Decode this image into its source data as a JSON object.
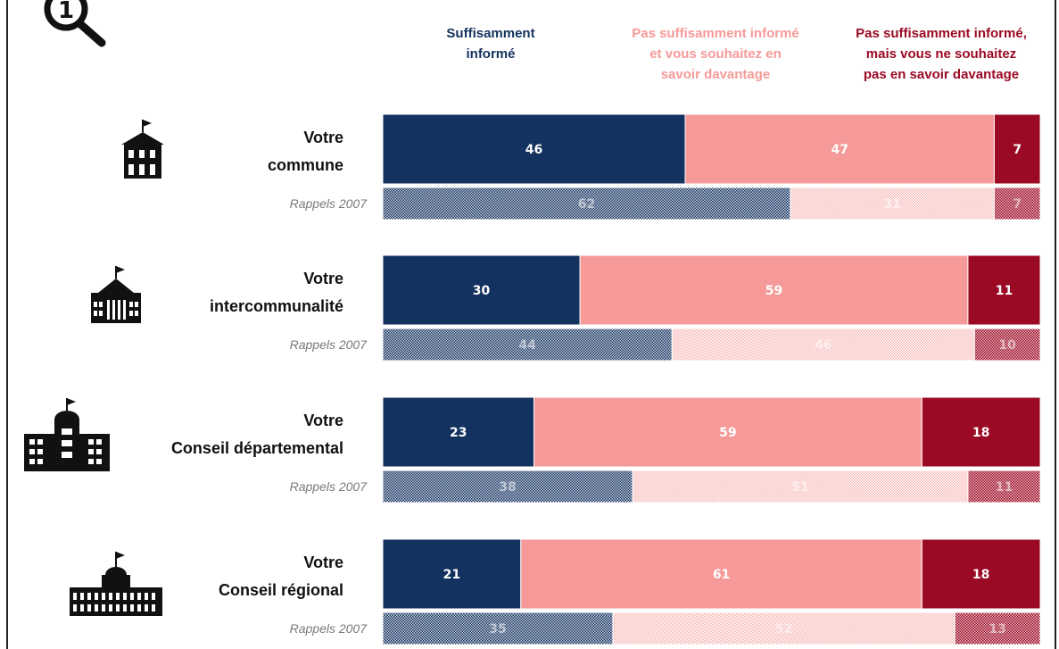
{
  "legend": {
    "s1": "Suffisamment\ninformé",
    "s2": "Pas suffisamment informé\net vous souhaitez en\nsavoir davantage",
    "s3": "Pas suffisamment informé,\nmais vous ne souhaitez\npas en savoir davantage"
  },
  "colors": {
    "s1": "#14325f",
    "s2": "#f59a98",
    "s3": "#9a0a24",
    "recall_label": "#7a7a7a"
  },
  "chart_data": {
    "type": "bar",
    "orientation": "horizontal",
    "stacked": true,
    "series_names": [
      "Suffisamment informé",
      "Pas suffisamment informé et vous souhaitez en savoir davantage",
      "Pas suffisamment informé, mais vous ne souhaitez pas en savoir davantage"
    ],
    "groups": [
      {
        "label": [
          "Votre",
          "commune"
        ],
        "icon": "town-hall-icon",
        "current": [
          46,
          47,
          7
        ],
        "recall_label": "Rappels 2007",
        "recall": [
          62,
          31,
          7
        ]
      },
      {
        "label": [
          "Votre",
          "intercommunalité"
        ],
        "icon": "institution-building-icon",
        "current": [
          30,
          59,
          11
        ],
        "recall_label": "Rappels 2007",
        "recall": [
          44,
          46,
          10
        ]
      },
      {
        "label": [
          "Votre",
          "Conseil départemental"
        ],
        "icon": "prefecture-building-icon",
        "current": [
          23,
          59,
          18
        ],
        "recall_label": "Rappels 2007",
        "recall": [
          38,
          51,
          11
        ]
      },
      {
        "label": [
          "Votre",
          "Conseil régional"
        ],
        "icon": "palace-building-icon",
        "current": [
          21,
          61,
          18
        ],
        "recall_label": "Rappels 2007",
        "recall": [
          35,
          52,
          13
        ]
      }
    ],
    "xlim": [
      0,
      100
    ]
  },
  "logo_icon": "magnifier-number-one-icon"
}
